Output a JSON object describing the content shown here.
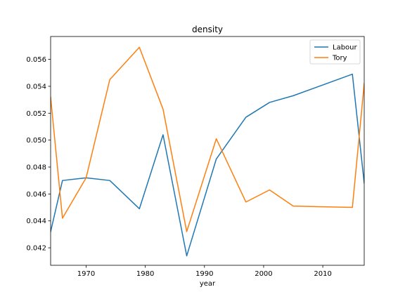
{
  "chart_data": {
    "type": "line",
    "title": "density",
    "xlabel": "year",
    "ylabel": "",
    "xlim": [
      1964,
      2017
    ],
    "ylim": [
      0.0407,
      0.0577
    ],
    "xticks": [
      1970,
      1980,
      1990,
      2000,
      2010
    ],
    "xtick_labels": [
      "1970",
      "1980",
      "1990",
      "2000",
      "2010"
    ],
    "yticks": [
      0.042,
      0.044,
      0.046,
      0.048,
      0.05,
      0.052,
      0.054,
      0.056
    ],
    "ytick_labels": [
      "0.042",
      "0.044",
      "0.046",
      "0.048",
      "0.050",
      "0.052",
      "0.054",
      "0.056"
    ],
    "grid": false,
    "legend_position": "top-right",
    "series": [
      {
        "name": "Labour",
        "color": "#1f77b4",
        "x": [
          1964,
          1966,
          1970,
          1974,
          1979,
          1983,
          1987,
          1992,
          1997,
          2001,
          2005,
          2010,
          2015,
          2017
        ],
        "y": [
          0.0432,
          0.047,
          0.0472,
          0.047,
          0.0449,
          0.0504,
          0.0414,
          0.0486,
          0.0517,
          0.0528,
          0.0533,
          0.0541,
          0.0549,
          0.0468
        ]
      },
      {
        "name": "Tory",
        "color": "#ff7f0e",
        "x": [
          1964,
          1966,
          1970,
          1974,
          1979,
          1983,
          1987,
          1992,
          1997,
          2001,
          2005,
          2010,
          2015,
          2017
        ],
        "y": [
          0.0532,
          0.0442,
          0.0472,
          0.0545,
          0.0569,
          0.0523,
          0.0432,
          0.0501,
          0.0454,
          0.0463,
          0.0451,
          0.04505,
          0.045,
          0.0542
        ]
      }
    ]
  }
}
